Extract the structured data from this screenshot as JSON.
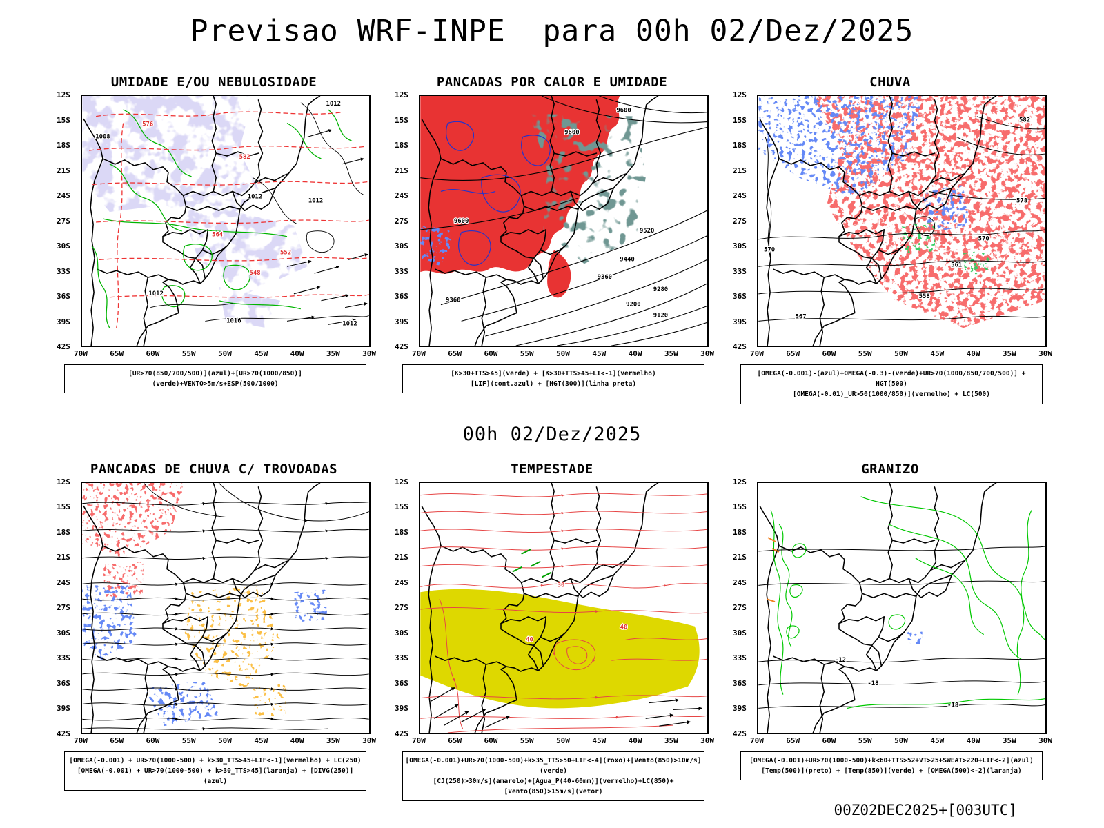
{
  "page": {
    "title": "Previsao WRF-INPE  para 00h 02/Dez/2025",
    "subtitle": "00h 02/Dez/2025",
    "footer": "00Z02DEC2025+[003UTC]"
  },
  "axes": {
    "lat": [
      "12S",
      "15S",
      "18S",
      "21S",
      "24S",
      "27S",
      "30S",
      "33S",
      "36S",
      "39S",
      "42S"
    ],
    "lon": [
      "70W",
      "65W",
      "60W",
      "55W",
      "50W",
      "45W",
      "40W",
      "35W",
      "30W"
    ]
  },
  "colors": {
    "red": "#e83333",
    "blue": "#2437d4",
    "green": "#00b400",
    "orange": "#f08020",
    "yellow": "#ded800",
    "purple_shade": "#b3ace6",
    "dark_teal": "#274f47",
    "black": "#000000"
  },
  "panels": [
    {
      "title": "UMIDADE E/OU NEBULOSIDADE",
      "caption_line1": "[UR>70(850/700/500)](azul)+[UR>70(1000/850)](verde)+VENTO>5m/s+ESP(500/1000)",
      "caption_line2": "",
      "contour_labels": [
        "1012",
        "1008",
        "576",
        "582",
        "1012",
        "1012",
        "564",
        "552",
        "1012",
        "548",
        "1016",
        "1012"
      ]
    },
    {
      "title": "PANCADAS POR CALOR E UMIDADE",
      "caption_line1": "[K>30+TTS>45](verde) + [K>30+TTS>45+LI<-1](vermelho)",
      "caption_line2": "[LIF](cont.azul) + [HGT(300)](linha preta)",
      "contour_labels": [
        "9600",
        "9600",
        "9600",
        "9520",
        "9440",
        "9360",
        "9280",
        "9200",
        "9120",
        "9360"
      ]
    },
    {
      "title": "CHUVA",
      "caption_line1": "[OMEGA(-0.001)-(azul)+OMEGA(-0.3)-(verde)+UR>70(1000/850/700/500)] + HGT(500)",
      "caption_line2": "[OMEGA(-0.01)_UR>50(1000/850)](vermelho) + LC(500)",
      "contour_labels": [
        "582",
        "578",
        "570",
        "561",
        "567",
        "558",
        "570"
      ]
    },
    {
      "title": "PANCADAS DE CHUVA C/ TROVOADAS",
      "caption_line1": "[OMEGA(-0.001) + UR>70(1000-500) + k>30_TTS>45+LIF<-1](vermelho) + LC(250)",
      "caption_line2": "[OMEGA(-0.001) + UR>70(1000-500) + k>30_TTS>45](laranja) + [DIVG(250)](azul)",
      "contour_labels": []
    },
    {
      "title": "TEMPESTADE",
      "caption_line1": "[OMEGA(-0.001)+UR>70(1000-500)+k>35_TTS>50+LIF<-4](roxo)+[Vento(850)>10m/s](verde)",
      "caption_line2": "[CJ(250)>30m/s](amarelo)+[Agua_P(40-60mm)](vermelho)+LC(850)+[Vento(850)>15m/s](vetor)",
      "contour_labels": [
        "40",
        "30",
        "40"
      ]
    },
    {
      "title": "GRANIZO",
      "caption_line1": "[OMEGA(-0.001)+UR>70(1000-500)+k<60+TTS>52+VT>25+SWEAT>220+LIF<-2](azul)",
      "caption_line2": "[Temp(500)](preto) + [Temp(850)](verde) + [OMEGA(500)<-2](laranja)",
      "contour_labels": [
        "-12",
        "-18",
        "-18"
      ]
    }
  ]
}
